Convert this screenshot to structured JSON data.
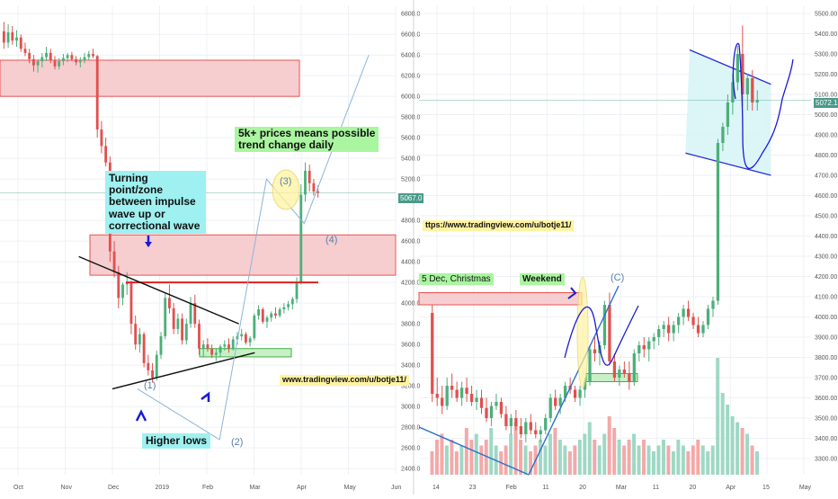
{
  "colors": {
    "up": "#4caf7a",
    "down": "#e0504e",
    "zone_fill": "#f6c9cc",
    "zone_line": "#e84040",
    "green_fill": "#c8f0c8",
    "green_line": "#40b040",
    "note_bg_blue": "#9ff0f0",
    "note_bg_green": "#aaf5a0",
    "channel_fill": "#d8f4f6",
    "channel_line": "#2a30d6",
    "arrow_blue": "#1a1ad6",
    "wave_line": "#8fb4d6",
    "circle_fill": "#fff3a0",
    "grid": "#eef1f5",
    "axis_text": "#555555"
  },
  "left_chart": {
    "price_badge": "5067.0",
    "annotations": {
      "turning_point": [
        "Turning point/zone",
        "between impulse",
        "wave up or",
        "correctional wave"
      ],
      "five_k": [
        "5k+ prices means possible",
        "trend change daily"
      ],
      "higher_lows": "Higher lows",
      "url": "www.tradingview.com/u/botje11/",
      "wave_1": "(1)",
      "wave_2": "(2)",
      "wave_3": "(3)",
      "wave_4": "(4)"
    }
  },
  "right_chart": {
    "price_badge": "5072.15",
    "annotations": {
      "christmas": "5 Dec, Christmas",
      "weekend": "Weekend",
      "url": "ttps://www.tradingview.com/u/botje11/",
      "wave_c": "(C)"
    }
  },
  "chart_data": [
    {
      "type": "candlestick",
      "title": "",
      "x_ticks": [
        "Oct",
        "Nov",
        "Dec",
        "2019",
        "Feb",
        "Mar",
        "Apr",
        "May",
        "Jun"
      ],
      "y_ticks": [
        "6800.0",
        "6600.0",
        "6400.0",
        "6200.0",
        "6000.0",
        "5800.0",
        "5600.0",
        "5400.0",
        "5200.0",
        "5000.0",
        "4800.0",
        "4600.0",
        "4400.0",
        "4200.0",
        "4000.0",
        "3800.0",
        "3600.0",
        "3400.0",
        "3200.0",
        "3000.0",
        "2800.0",
        "2600.0",
        "2400.0"
      ],
      "ylim": [
        2340,
        6880
      ],
      "last_price": 5067.0,
      "grid": true,
      "candles_ohlc": [
        [
          6630,
          6720,
          6460,
          6520
        ],
        [
          6520,
          6700,
          6470,
          6620
        ],
        [
          6620,
          6680,
          6500,
          6540
        ],
        [
          6540,
          6640,
          6480,
          6570
        ],
        [
          6570,
          6600,
          6430,
          6460
        ],
        [
          6460,
          6520,
          6390,
          6420
        ],
        [
          6420,
          6460,
          6320,
          6360
        ],
        [
          6360,
          6400,
          6240,
          6300
        ],
        [
          6300,
          6360,
          6230,
          6340
        ],
        [
          6340,
          6420,
          6280,
          6380
        ],
        [
          6380,
          6480,
          6340,
          6420
        ],
        [
          6420,
          6460,
          6320,
          6350
        ],
        [
          6350,
          6390,
          6260,
          6290
        ],
        [
          6290,
          6370,
          6260,
          6340
        ],
        [
          6340,
          6410,
          6300,
          6370
        ],
        [
          6370,
          6420,
          6330,
          6400
        ],
        [
          6400,
          6430,
          6340,
          6360
        ],
        [
          6360,
          6390,
          6300,
          6330
        ],
        [
          6330,
          6380,
          6280,
          6350
        ],
        [
          6350,
          6420,
          6320,
          6380
        ],
        [
          6380,
          6440,
          6350,
          6410
        ],
        [
          6410,
          6460,
          6370,
          6390
        ],
        [
          6390,
          6400,
          5600,
          5680
        ],
        [
          5680,
          5760,
          5450,
          5520
        ],
        [
          5520,
          5600,
          5320,
          5360
        ],
        [
          5360,
          5420,
          4400,
          4500
        ],
        [
          4500,
          4600,
          4250,
          4300
        ],
        [
          4300,
          4360,
          3950,
          4050
        ],
        [
          4050,
          4200,
          3980,
          4180
        ],
        [
          4180,
          4300,
          4080,
          4200
        ],
        [
          4200,
          4220,
          3700,
          3800
        ],
        [
          3800,
          3880,
          3550,
          3600
        ],
        [
          3600,
          3760,
          3520,
          3700
        ],
        [
          3700,
          3720,
          3380,
          3420
        ],
        [
          3420,
          3500,
          3300,
          3350
        ],
        [
          3350,
          3420,
          3230,
          3280
        ],
        [
          3280,
          3540,
          3250,
          3500
        ],
        [
          3500,
          3720,
          3460,
          3680
        ],
        [
          3680,
          4100,
          3650,
          4050
        ],
        [
          4050,
          4180,
          3900,
          3950
        ],
        [
          3950,
          4000,
          3700,
          3750
        ],
        [
          3750,
          3900,
          3700,
          3850
        ],
        [
          3850,
          3900,
          3600,
          3640
        ],
        [
          3640,
          3850,
          3600,
          3800
        ],
        [
          3800,
          4060,
          3760,
          4000
        ],
        [
          4000,
          4080,
          3760,
          3800
        ],
        [
          3800,
          3840,
          3500,
          3560
        ],
        [
          3560,
          3640,
          3480,
          3600
        ],
        [
          3600,
          3660,
          3530,
          3560
        ],
        [
          3560,
          3600,
          3470,
          3500
        ],
        [
          3500,
          3560,
          3440,
          3520
        ],
        [
          3520,
          3600,
          3480,
          3580
        ],
        [
          3580,
          3640,
          3540,
          3600
        ],
        [
          3600,
          3660,
          3520,
          3560
        ],
        [
          3560,
          3680,
          3540,
          3650
        ],
        [
          3650,
          3720,
          3600,
          3680
        ],
        [
          3680,
          3750,
          3640,
          3700
        ],
        [
          3700,
          3720,
          3600,
          3620
        ],
        [
          3620,
          3680,
          3580,
          3660
        ],
        [
          3660,
          3900,
          3640,
          3880
        ],
        [
          3880,
          3980,
          3840,
          3940
        ],
        [
          3940,
          3960,
          3800,
          3820
        ],
        [
          3820,
          3880,
          3760,
          3860
        ],
        [
          3860,
          3920,
          3820,
          3900
        ],
        [
          3900,
          3960,
          3850,
          3880
        ],
        [
          3880,
          3960,
          3860,
          3940
        ],
        [
          3940,
          4000,
          3900,
          3960
        ],
        [
          3960,
          4020,
          3930,
          3990
        ],
        [
          3990,
          4060,
          3940,
          4040
        ],
        [
          4040,
          4250,
          4000,
          4200
        ],
        [
          4200,
          5150,
          4180,
          5050
        ],
        [
          5050,
          5360,
          4980,
          5280
        ],
        [
          5280,
          5340,
          5080,
          5160
        ],
        [
          5160,
          5200,
          5040,
          5080
        ],
        [
          5080,
          5140,
          5020,
          5067
        ]
      ],
      "horizontal_zones": [
        {
          "from": 6000,
          "to": 6350
        },
        {
          "from": 4270,
          "to": 4660
        }
      ],
      "green_zone": {
        "from": 3480,
        "to": 3560
      },
      "red_resistance": 4200,
      "triangle_upper": [
        [
          0.094,
          4450
        ],
        [
          0.285,
          3800
        ]
      ],
      "triangle_lower": [
        [
          0.134,
          3170
        ],
        [
          0.304,
          3520
        ]
      ],
      "wave_path": [
        [
          0.164,
          3170
        ],
        [
          0.262,
          2680
        ],
        [
          0.318,
          5200
        ],
        [
          0.363,
          4770
        ],
        [
          0.44,
          6400
        ]
      ]
    },
    {
      "type": "candlestick",
      "title": "",
      "x_ticks": [
        "14",
        "23",
        "Feb",
        "11",
        "20",
        "Mar",
        "11",
        "20",
        "Apr",
        "15",
        "May"
      ],
      "y_ticks": [
        "5500.00",
        "5400.00",
        "5300.00",
        "5200.00",
        "5100.00",
        "5000.00",
        "4900.00",
        "4800.00",
        "4700.00",
        "4600.00",
        "4500.00",
        "4400.00",
        "4300.00",
        "4200.00",
        "4100.00",
        "4000.00",
        "3900.00",
        "3800.00",
        "3700.00",
        "3600.00",
        "3500.00",
        "3400.00",
        "3300.00"
      ],
      "ylim": [
        3220,
        5540
      ],
      "last_price": 5072.15,
      "grid": true,
      "candles_ohlc": [
        [
          4020,
          4060,
          3580,
          3620
        ],
        [
          3620,
          3700,
          3560,
          3600
        ],
        [
          3600,
          3660,
          3520,
          3560
        ],
        [
          3560,
          3700,
          3540,
          3660
        ],
        [
          3660,
          3720,
          3600,
          3640
        ],
        [
          3640,
          3680,
          3580,
          3600
        ],
        [
          3600,
          3680,
          3560,
          3650
        ],
        [
          3650,
          3700,
          3580,
          3620
        ],
        [
          3620,
          3660,
          3560,
          3580
        ],
        [
          3580,
          3640,
          3540,
          3600
        ],
        [
          3600,
          3640,
          3520,
          3550
        ],
        [
          3550,
          3600,
          3480,
          3500
        ],
        [
          3500,
          3580,
          3460,
          3560
        ],
        [
          3560,
          3620,
          3540,
          3580
        ],
        [
          3580,
          3600,
          3500,
          3520
        ],
        [
          3520,
          3560,
          3440,
          3460
        ],
        [
          3460,
          3520,
          3420,
          3500
        ],
        [
          3500,
          3540,
          3440,
          3460
        ],
        [
          3460,
          3500,
          3400,
          3420
        ],
        [
          3420,
          3500,
          3380,
          3480
        ],
        [
          3480,
          3520,
          3420,
          3440
        ],
        [
          3440,
          3480,
          3400,
          3420
        ],
        [
          3420,
          3460,
          3380,
          3440
        ],
        [
          3440,
          3520,
          3420,
          3500
        ],
        [
          3500,
          3620,
          3480,
          3600
        ],
        [
          3600,
          3640,
          3540,
          3560
        ],
        [
          3560,
          3620,
          3520,
          3600
        ],
        [
          3600,
          3680,
          3580,
          3660
        ],
        [
          3660,
          3700,
          3620,
          3640
        ],
        [
          3640,
          3660,
          3580,
          3600
        ],
        [
          3600,
          3660,
          3560,
          3640
        ],
        [
          3640,
          3700,
          3600,
          3680
        ],
        [
          3680,
          3860,
          3660,
          3840
        ],
        [
          3840,
          3900,
          3780,
          3820
        ],
        [
          3820,
          3880,
          3760,
          3860
        ],
        [
          3860,
          4080,
          3840,
          4060
        ],
        [
          4060,
          4120,
          3760,
          3780
        ],
        [
          3780,
          3820,
          3680,
          3700
        ],
        [
          3700,
          3760,
          3660,
          3740
        ],
        [
          3740,
          3780,
          3700,
          3720
        ],
        [
          3720,
          3780,
          3640,
          3680
        ],
        [
          3680,
          3840,
          3660,
          3820
        ],
        [
          3820,
          3880,
          3780,
          3860
        ],
        [
          3860,
          3900,
          3800,
          3840
        ],
        [
          3840,
          3900,
          3780,
          3880
        ],
        [
          3880,
          3920,
          3840,
          3900
        ],
        [
          3900,
          3960,
          3860,
          3940
        ],
        [
          3940,
          3980,
          3900,
          3960
        ],
        [
          3960,
          4000,
          3880,
          3920
        ],
        [
          3920,
          3980,
          3880,
          3960
        ],
        [
          3960,
          4020,
          3920,
          4000
        ],
        [
          4000,
          4060,
          3960,
          4040
        ],
        [
          4040,
          4080,
          3980,
          4000
        ],
        [
          4000,
          4020,
          3940,
          3960
        ],
        [
          3960,
          4000,
          3900,
          3920
        ],
        [
          3920,
          3980,
          3900,
          3960
        ],
        [
          3960,
          4060,
          3940,
          4040
        ],
        [
          4040,
          4100,
          4000,
          4080
        ],
        [
          4080,
          4880,
          4060,
          4860
        ],
        [
          4860,
          4960,
          4820,
          4940
        ],
        [
          4940,
          5100,
          4900,
          5060
        ],
        [
          5060,
          5200,
          5000,
          5160
        ],
        [
          5160,
          5340,
          5120,
          5300
        ],
        [
          5300,
          5440,
          5040,
          5100
        ],
        [
          5100,
          5200,
          5020,
          5180
        ],
        [
          5180,
          5220,
          5020,
          5060
        ],
        [
          5060,
          5120,
          5020,
          5072
        ]
      ],
      "volumes": [
        4,
        6,
        7,
        5,
        6,
        4,
        5,
        8,
        6,
        7,
        5,
        6,
        8,
        5,
        4,
        5,
        7,
        9,
        6,
        5,
        4,
        5,
        6,
        5,
        7,
        8,
        6,
        5,
        4,
        5,
        6,
        7,
        9,
        6,
        5,
        7,
        10,
        8,
        6,
        5,
        6,
        7,
        5,
        6,
        5,
        4,
        5,
        6,
        5,
        4,
        6,
        5,
        4,
        5,
        6,
        5,
        4,
        5,
        20,
        14,
        12,
        10,
        9,
        8,
        7,
        5,
        4
      ],
      "horizontal_zones": [
        {
          "from": 4060,
          "to": 4120
        }
      ],
      "green_zone": {
        "from": 3680,
        "to": 3720
      },
      "channel_upper": [
        [
          0.823,
          5320
        ],
        [
          0.92,
          5150
        ]
      ],
      "channel_lower": [
        [
          0.818,
          4810
        ],
        [
          0.92,
          4700
        ]
      ]
    }
  ]
}
